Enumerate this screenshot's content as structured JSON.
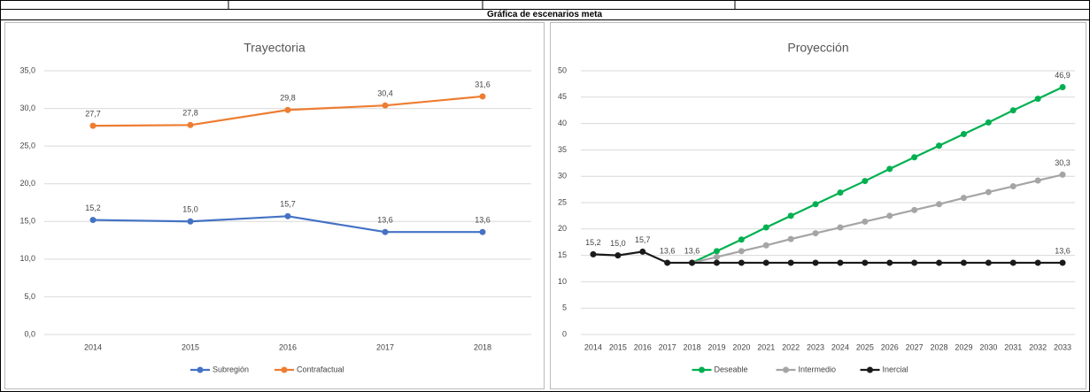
{
  "heading": "Gráfica de escenarios meta",
  "chart_data": [
    {
      "type": "line",
      "title": "Trayectoria",
      "categories": [
        "2014",
        "2015",
        "2016",
        "2017",
        "2018"
      ],
      "series": [
        {
          "name": "Subregión",
          "color": "#4472c4",
          "values": [
            15.2,
            15.0,
            15.7,
            13.6,
            13.6
          ],
          "value_labels": [
            "15,2",
            "15,0",
            "15,7",
            "13,6",
            "13,6"
          ]
        },
        {
          "name": "Contrafactual",
          "color": "#ed7d31",
          "values": [
            27.7,
            27.8,
            29.8,
            30.4,
            31.6
          ],
          "value_labels": [
            "27,7",
            "27,8",
            "29,8",
            "30,4",
            "31,6"
          ]
        }
      ],
      "ylim": [
        0,
        35
      ],
      "yticks": [
        {
          "value": 0,
          "label": "0,0"
        },
        {
          "value": 5,
          "label": "5,0"
        },
        {
          "value": 10,
          "label": "10,0"
        },
        {
          "value": 15,
          "label": "15,0"
        },
        {
          "value": 20,
          "label": "20,0"
        },
        {
          "value": 25,
          "label": "25,0"
        },
        {
          "value": 30,
          "label": "30,0"
        },
        {
          "value": 35,
          "label": "35,0"
        }
      ],
      "grid": true,
      "legend": "bottom"
    },
    {
      "type": "line",
      "title": "Proyección",
      "categories": [
        "2014",
        "2015",
        "2016",
        "2017",
        "2018",
        "2019",
        "2020",
        "2021",
        "2022",
        "2023",
        "2024",
        "2025",
        "2026",
        "2027",
        "2028",
        "2029",
        "2030",
        "2031",
        "2032",
        "2033"
      ],
      "series": [
        {
          "name": "Deseable",
          "color": "#00b050",
          "values": [
            null,
            null,
            null,
            null,
            13.6,
            15.8,
            18.0,
            20.3,
            22.5,
            24.7,
            26.9,
            29.1,
            31.4,
            33.6,
            35.8,
            38.0,
            40.2,
            42.5,
            44.7,
            46.9
          ],
          "value_labels": [
            null,
            null,
            null,
            null,
            null,
            null,
            null,
            null,
            null,
            null,
            null,
            null,
            null,
            null,
            null,
            null,
            null,
            null,
            null,
            "46,9"
          ]
        },
        {
          "name": "Intermedio",
          "color": "#a5a5a5",
          "values": [
            null,
            null,
            null,
            null,
            13.6,
            14.7,
            15.8,
            16.9,
            18.1,
            19.2,
            20.3,
            21.4,
            22.5,
            23.6,
            24.7,
            25.9,
            27.0,
            28.1,
            29.2,
            30.3
          ],
          "value_labels": [
            null,
            null,
            null,
            null,
            null,
            null,
            null,
            null,
            null,
            null,
            null,
            null,
            null,
            null,
            null,
            null,
            null,
            null,
            null,
            "30,3"
          ]
        },
        {
          "name": "Inercial",
          "color": "#1a1a1a",
          "values": [
            15.2,
            15.0,
            15.7,
            13.6,
            13.6,
            13.6,
            13.6,
            13.6,
            13.6,
            13.6,
            13.6,
            13.6,
            13.6,
            13.6,
            13.6,
            13.6,
            13.6,
            13.6,
            13.6,
            13.6
          ],
          "value_labels": [
            "15,2",
            "15,0",
            "15,7",
            "13,6",
            "13,6",
            null,
            null,
            null,
            null,
            null,
            null,
            null,
            null,
            null,
            null,
            null,
            null,
            null,
            null,
            "13,6"
          ]
        }
      ],
      "ylim": [
        0,
        50
      ],
      "yticks": [
        0,
        5,
        10,
        15,
        20,
        25,
        30,
        35,
        40,
        45,
        50
      ],
      "grid": true,
      "legend": "bottom"
    }
  ]
}
